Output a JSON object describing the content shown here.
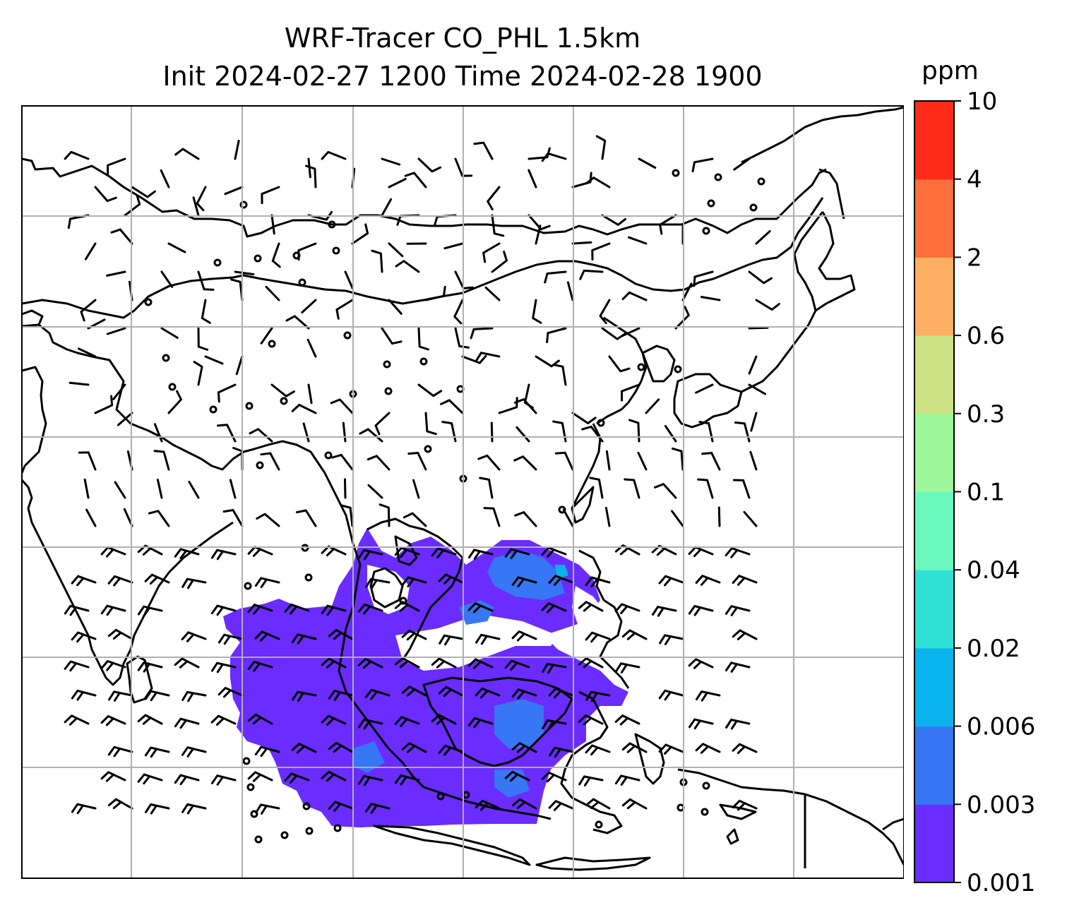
{
  "title": {
    "line1": "WRF-Tracer CO_PHL 1.5km",
    "line2": "Init 2024-02-27 1200 Time 2024-02-28 1900"
  },
  "colorbar": {
    "unit": "ppm",
    "levels": [
      "0.001",
      "0.003",
      "0.006",
      "0.02",
      "0.04",
      "0.1",
      "0.3",
      "0.6",
      "2",
      "4",
      "10"
    ],
    "colors": [
      "#6a2cff",
      "#3776f4",
      "#07b3ea",
      "#2fe0d4",
      "#6af8bd",
      "#9cf89a",
      "#cde285",
      "#fdb063",
      "#ff6e3b",
      "#ff2a17"
    ]
  },
  "map": {
    "field_color_low": "#6a2cff",
    "field_color_mid": "#3776f4",
    "gridline_color": "#b0b0b0",
    "coastline_color": "#000000",
    "wind_barb_color": "#000000"
  }
}
